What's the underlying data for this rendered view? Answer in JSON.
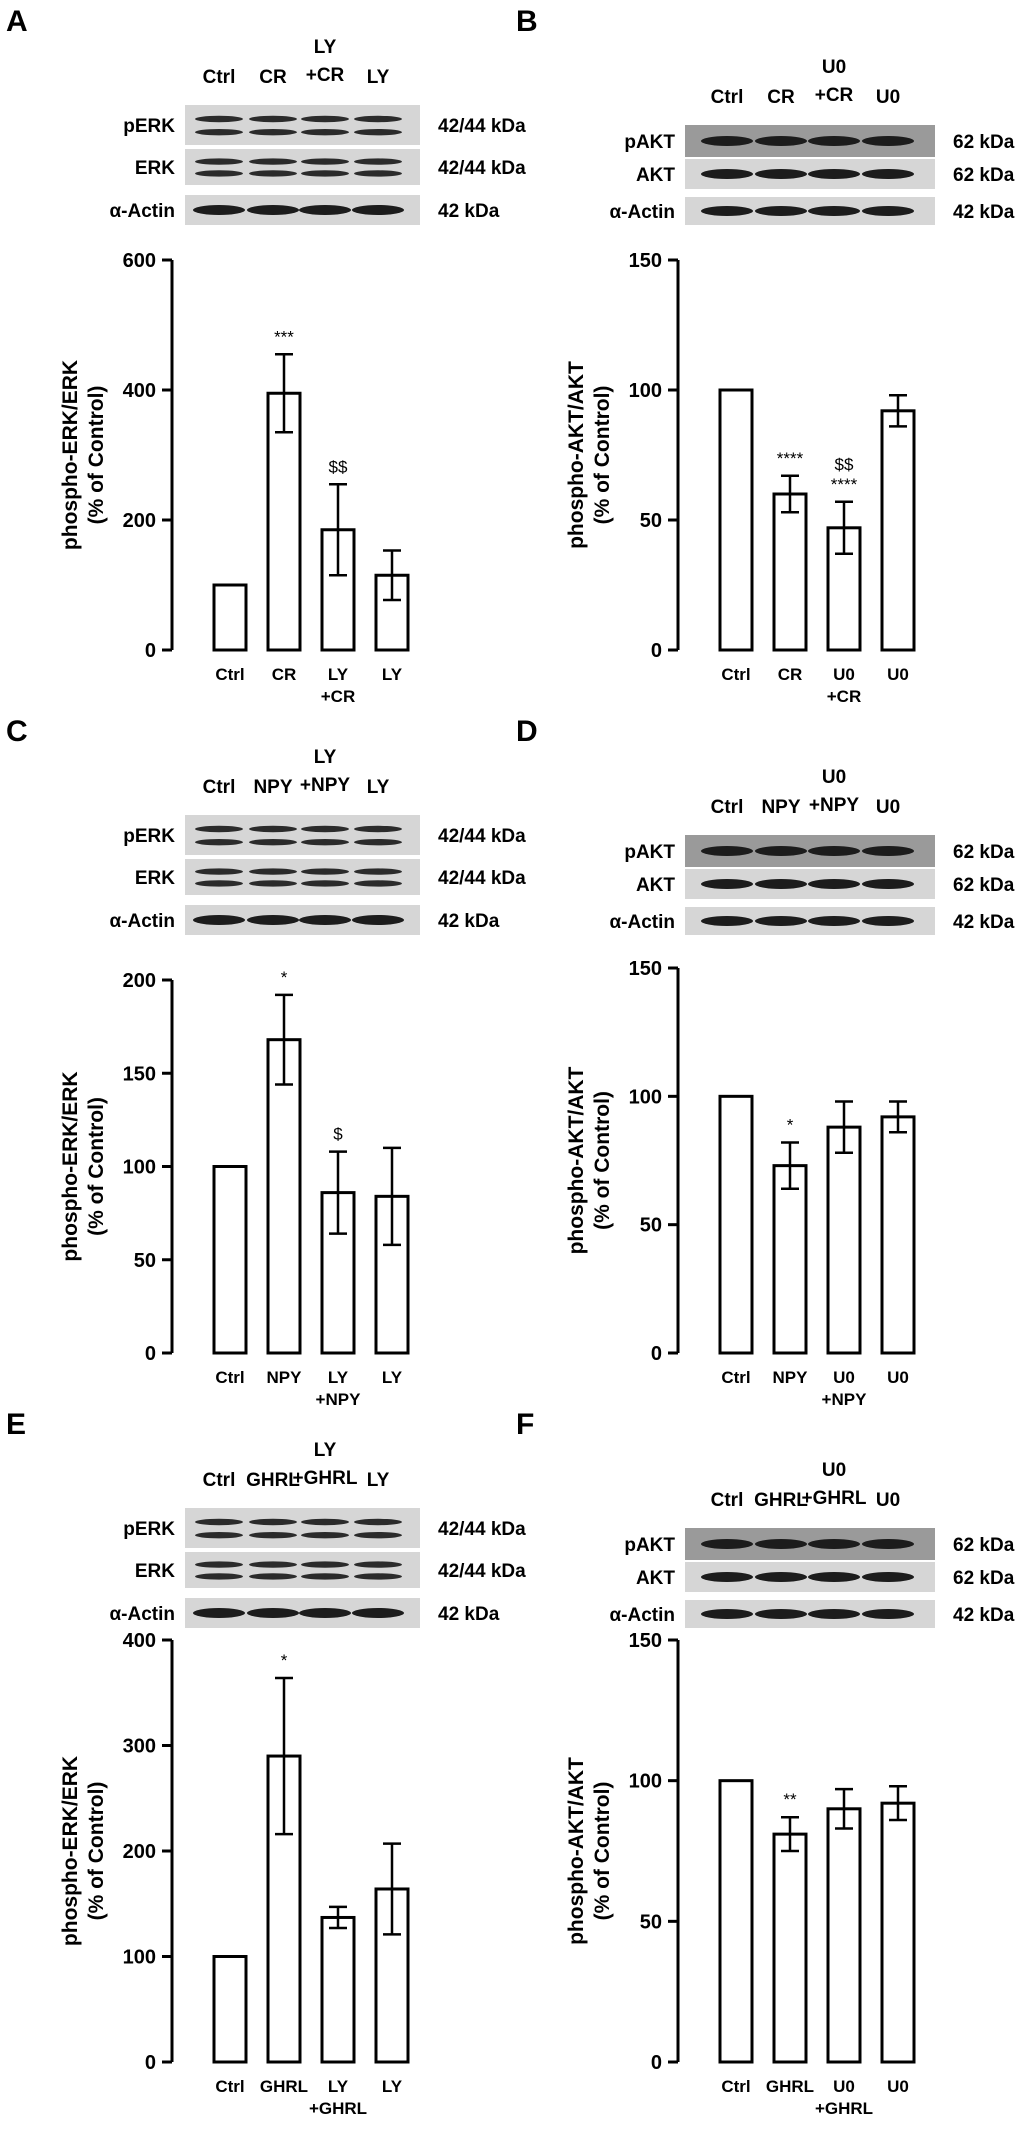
{
  "panels": [
    {
      "letter": "A",
      "blot": {
        "lanes": [
          [
            "Ctrl"
          ],
          [
            "CR"
          ],
          [
            "LY",
            "+CR"
          ],
          [
            "LY"
          ]
        ],
        "rows": [
          {
            "label": "pERK",
            "kda": "42/44 kDa"
          },
          {
            "label": "ERK",
            "kda": "42/44 kDa"
          },
          {
            "label": "α-Actin",
            "kda": "42 kDa"
          }
        ]
      }
    },
    {
      "letter": "B",
      "blot": {
        "lanes": [
          [
            "Ctrl"
          ],
          [
            "CR"
          ],
          [
            "U0",
            "+CR"
          ],
          [
            "U0"
          ]
        ],
        "rows": [
          {
            "label": "pAKT",
            "kda": "62 kDa"
          },
          {
            "label": "AKT",
            "kda": "62 kDa"
          },
          {
            "label": "α-Actin",
            "kda": "42 kDa"
          }
        ]
      }
    },
    {
      "letter": "C",
      "blot": {
        "lanes": [
          [
            "Ctrl"
          ],
          [
            "NPY"
          ],
          [
            "LY",
            "+NPY"
          ],
          [
            "LY"
          ]
        ],
        "rows": [
          {
            "label": "pERK",
            "kda": "42/44 kDa"
          },
          {
            "label": "ERK",
            "kda": "42/44 kDa"
          },
          {
            "label": "α-Actin",
            "kda": "42 kDa"
          }
        ]
      }
    },
    {
      "letter": "D",
      "blot": {
        "lanes": [
          [
            "Ctrl"
          ],
          [
            "NPY"
          ],
          [
            "U0",
            "+NPY"
          ],
          [
            "U0"
          ]
        ],
        "rows": [
          {
            "label": "pAKT",
            "kda": "62 kDa"
          },
          {
            "label": "AKT",
            "kda": "62 kDa"
          },
          {
            "label": "α-Actin",
            "kda": "42 kDa"
          }
        ]
      }
    },
    {
      "letter": "E",
      "blot": {
        "lanes": [
          [
            "Ctrl"
          ],
          [
            "GHRL"
          ],
          [
            "LY",
            "+GHRL"
          ],
          [
            "LY"
          ]
        ],
        "rows": [
          {
            "label": "pERK",
            "kda": "42/44 kDa"
          },
          {
            "label": "ERK",
            "kda": "42/44 kDa"
          },
          {
            "label": "α-Actin",
            "kda": "42 kDa"
          }
        ]
      }
    },
    {
      "letter": "F",
      "blot": {
        "lanes": [
          [
            "Ctrl"
          ],
          [
            "GHRL"
          ],
          [
            "U0",
            "+GHRL"
          ],
          [
            "U0"
          ]
        ],
        "rows": [
          {
            "label": "pAKT",
            "kda": "62 kDa"
          },
          {
            "label": "AKT",
            "kda": "62 kDa"
          },
          {
            "label": "α-Actin",
            "kda": "42 kDa"
          }
        ]
      }
    }
  ],
  "chart_data": [
    {
      "panel": "A",
      "type": "bar",
      "categories": [
        [
          "Ctrl"
        ],
        [
          "CR"
        ],
        [
          "LY",
          "+CR"
        ],
        [
          "LY"
        ]
      ],
      "values": [
        100,
        395,
        185,
        115
      ],
      "errors": [
        0,
        60,
        70,
        38
      ],
      "annotations": [
        "",
        "***",
        "$$",
        ""
      ],
      "ylabel": [
        "phospho-ERK/ERK",
        "(% of Control)"
      ],
      "ylim": [
        0,
        600
      ],
      "yticks": [
        0,
        200,
        400,
        600
      ]
    },
    {
      "panel": "B",
      "type": "bar",
      "categories": [
        [
          "Ctrl"
        ],
        [
          "CR"
        ],
        [
          "U0",
          "+CR"
        ],
        [
          "U0"
        ]
      ],
      "values": [
        100,
        60,
        47,
        92
      ],
      "errors": [
        0,
        7,
        10,
        6
      ],
      "annotations": [
        "",
        "****",
        "$$\n****",
        ""
      ],
      "ylabel": [
        "phospho-AKT/AKT",
        "(% of Control)"
      ],
      "ylim": [
        0,
        150
      ],
      "yticks": [
        0,
        50,
        100,
        150
      ]
    },
    {
      "panel": "C",
      "type": "bar",
      "categories": [
        [
          "Ctrl"
        ],
        [
          "NPY"
        ],
        [
          "LY",
          "+NPY"
        ],
        [
          "LY"
        ]
      ],
      "values": [
        100,
        168,
        86,
        84
      ],
      "errors": [
        0,
        24,
        22,
        26
      ],
      "annotations": [
        "",
        "*",
        "$",
        ""
      ],
      "ylabel": [
        "phospho-ERK/ERK",
        "(% of Control)"
      ],
      "ylim": [
        0,
        200
      ],
      "yticks": [
        0,
        50,
        100,
        150,
        200
      ]
    },
    {
      "panel": "D",
      "type": "bar",
      "categories": [
        [
          "Ctrl"
        ],
        [
          "NPY"
        ],
        [
          "U0",
          "+NPY"
        ],
        [
          "U0"
        ]
      ],
      "values": [
        100,
        73,
        88,
        92
      ],
      "errors": [
        0,
        9,
        10,
        6
      ],
      "annotations": [
        "",
        "*",
        "",
        ""
      ],
      "ylabel": [
        "phospho-AKT/AKT",
        "(% of Control)"
      ],
      "ylim": [
        0,
        150
      ],
      "yticks": [
        0,
        50,
        100,
        150
      ]
    },
    {
      "panel": "E",
      "type": "bar",
      "categories": [
        [
          "Ctrl"
        ],
        [
          "GHRL"
        ],
        [
          "LY",
          "+GHRL"
        ],
        [
          "LY"
        ]
      ],
      "values": [
        100,
        290,
        137,
        164
      ],
      "errors": [
        0,
        74,
        10,
        43
      ],
      "annotations": [
        "",
        "*",
        "",
        ""
      ],
      "ylabel": [
        "phospho-ERK/ERK",
        "(% of Control)"
      ],
      "ylim": [
        0,
        400
      ],
      "yticks": [
        0,
        100,
        200,
        300,
        400
      ]
    },
    {
      "panel": "F",
      "type": "bar",
      "categories": [
        [
          "Ctrl"
        ],
        [
          "GHRL"
        ],
        [
          "U0",
          "+GHRL"
        ],
        [
          "U0"
        ]
      ],
      "values": [
        100,
        81,
        90,
        92
      ],
      "errors": [
        0,
        6,
        7,
        6
      ],
      "annotations": [
        "",
        "**",
        "",
        ""
      ],
      "ylabel": [
        "phospho-AKT/AKT",
        "(% of Control)"
      ],
      "ylim": [
        0,
        150
      ],
      "yticks": [
        0,
        50,
        100,
        150
      ]
    }
  ]
}
